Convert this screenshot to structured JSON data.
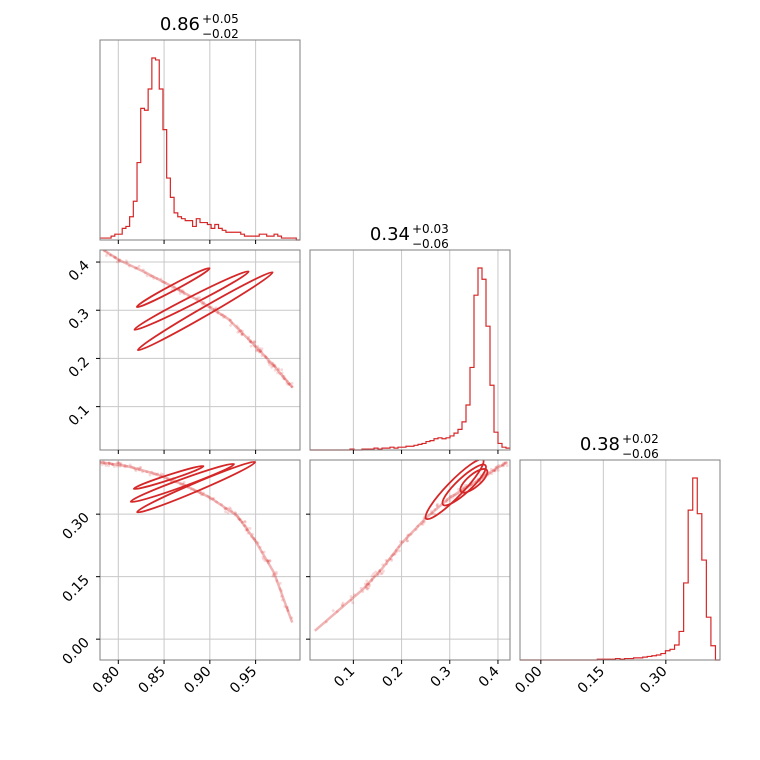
{
  "colors": {
    "line": "#d62728",
    "scatter": "#d62728",
    "grid": "#c8c8c8",
    "frame": "#7f7f7f"
  },
  "chart_data": {
    "type": "corner",
    "grid": true,
    "parameters": [
      {
        "title": {
          "value": "0.86",
          "plus": "+0.05",
          "minus": "−0.02"
        },
        "range": [
          0.78,
          0.9985
        ],
        "ticks": [
          0.8,
          0.85,
          0.9,
          0.95
        ],
        "tick_labels": [
          "0.80",
          "0.85",
          "0.90",
          "0.95"
        ]
      },
      {
        "title": {
          "value": "0.34",
          "plus": "+0.03",
          "minus": "−0.06"
        },
        "range": [
          0.01,
          0.425
        ],
        "ticks": [
          0.1,
          0.2,
          0.3,
          0.4
        ],
        "tick_labels": [
          "0.1",
          "0.2",
          "0.3",
          "0.4"
        ]
      },
      {
        "title": {
          "value": "0.38",
          "plus": "+0.02",
          "minus": "−0.06"
        },
        "range": [
          -0.05,
          0.43
        ],
        "ticks": [
          0.0,
          0.15,
          0.3
        ],
        "tick_labels": [
          "0.00",
          "0.15",
          "0.30"
        ]
      }
    ],
    "histograms": [
      {
        "param": 0,
        "bin_edges": [
          0.78,
          0.8985
        ],
        "counts": [
          1,
          1,
          1,
          2,
          3,
          3,
          6,
          7,
          12,
          20,
          40,
          68,
          67,
          78,
          94,
          93,
          78,
          57,
          32,
          22,
          14,
          12,
          11,
          10,
          10,
          7,
          11,
          9,
          9,
          8,
          6,
          8,
          6,
          5,
          4,
          4,
          4,
          4,
          3,
          2,
          2,
          2,
          2,
          3,
          3,
          2,
          2,
          3,
          2,
          1,
          1,
          1,
          1,
          0
        ]
      },
      {
        "param": 1,
        "counts": [
          0,
          0,
          0,
          0,
          0,
          0,
          0,
          0,
          0,
          0,
          1,
          0,
          0,
          1,
          1,
          1,
          2,
          1,
          2,
          2,
          3,
          2,
          3,
          3,
          4,
          4,
          5,
          6,
          7,
          9,
          10,
          12,
          13,
          12,
          13,
          15,
          18,
          22,
          30,
          48,
          88,
          165,
          194,
          182,
          132,
          69,
          19,
          7,
          3,
          2
        ]
      },
      {
        "param": 2,
        "counts": [
          0,
          0,
          0,
          0,
          0,
          0,
          0,
          0,
          0,
          0,
          0,
          0,
          0,
          0,
          0,
          0,
          0,
          1,
          1,
          1,
          1,
          2,
          1,
          2,
          2,
          3,
          3,
          4,
          5,
          6,
          7,
          9,
          13,
          15,
          21,
          40,
          108,
          210,
          255,
          205,
          140,
          60,
          20,
          0
        ]
      }
    ],
    "scatter_pairs": [
      {
        "x_param": 0,
        "y_param": 1,
        "trend": [
          [
            0.78,
            0.43
          ],
          [
            0.8,
            0.405
          ],
          [
            0.83,
            0.378
          ],
          [
            0.86,
            0.348
          ],
          [
            0.89,
            0.318
          ],
          [
            0.92,
            0.282
          ],
          [
            0.95,
            0.225
          ],
          [
            0.97,
            0.185
          ],
          [
            0.99,
            0.14
          ]
        ],
        "contours": [
          {
            "center": [
              0.86,
              0.347
            ],
            "width": 0.09,
            "height": 0.012,
            "angle": -28
          },
          {
            "center": [
              0.88,
              0.32
            ],
            "width": 0.14,
            "height": 0.016,
            "angle": -27
          },
          {
            "center": [
              0.895,
              0.298
            ],
            "width": 0.17,
            "height": 0.018,
            "angle": -30
          }
        ]
      },
      {
        "x_param": 0,
        "y_param": 2,
        "trend": [
          [
            0.78,
            0.425
          ],
          [
            0.81,
            0.415
          ],
          [
            0.84,
            0.397
          ],
          [
            0.87,
            0.372
          ],
          [
            0.9,
            0.34
          ],
          [
            0.93,
            0.296
          ],
          [
            0.95,
            0.235
          ],
          [
            0.97,
            0.16
          ],
          [
            0.99,
            0.04
          ]
        ],
        "contours": [
          {
            "center": [
              0.855,
              0.388
            ],
            "width": 0.08,
            "height": 0.012,
            "angle": -18
          },
          {
            "center": [
              0.87,
              0.375
            ],
            "width": 0.12,
            "height": 0.018,
            "angle": -20
          },
          {
            "center": [
              0.885,
              0.365
            ],
            "width": 0.14,
            "height": 0.02,
            "angle": -23
          }
        ]
      },
      {
        "x_param": 1,
        "y_param": 2,
        "trend": [
          [
            0.02,
            0.02
          ],
          [
            0.12,
            0.12
          ],
          [
            0.16,
            0.17
          ],
          [
            0.2,
            0.23
          ],
          [
            0.25,
            0.29
          ],
          [
            0.3,
            0.34
          ],
          [
            0.35,
            0.375
          ],
          [
            0.39,
            0.405
          ],
          [
            0.42,
            0.425
          ]
        ],
        "contours": [
          {
            "center": [
              0.35,
              0.38
            ],
            "width": 0.07,
            "height": 0.03,
            "angle": -40
          },
          {
            "center": [
              0.33,
              0.37
            ],
            "width": 0.12,
            "height": 0.035,
            "angle": -43
          },
          {
            "center": [
              0.31,
              0.36
            ],
            "width": 0.17,
            "height": 0.038,
            "angle": -46
          }
        ]
      }
    ]
  }
}
